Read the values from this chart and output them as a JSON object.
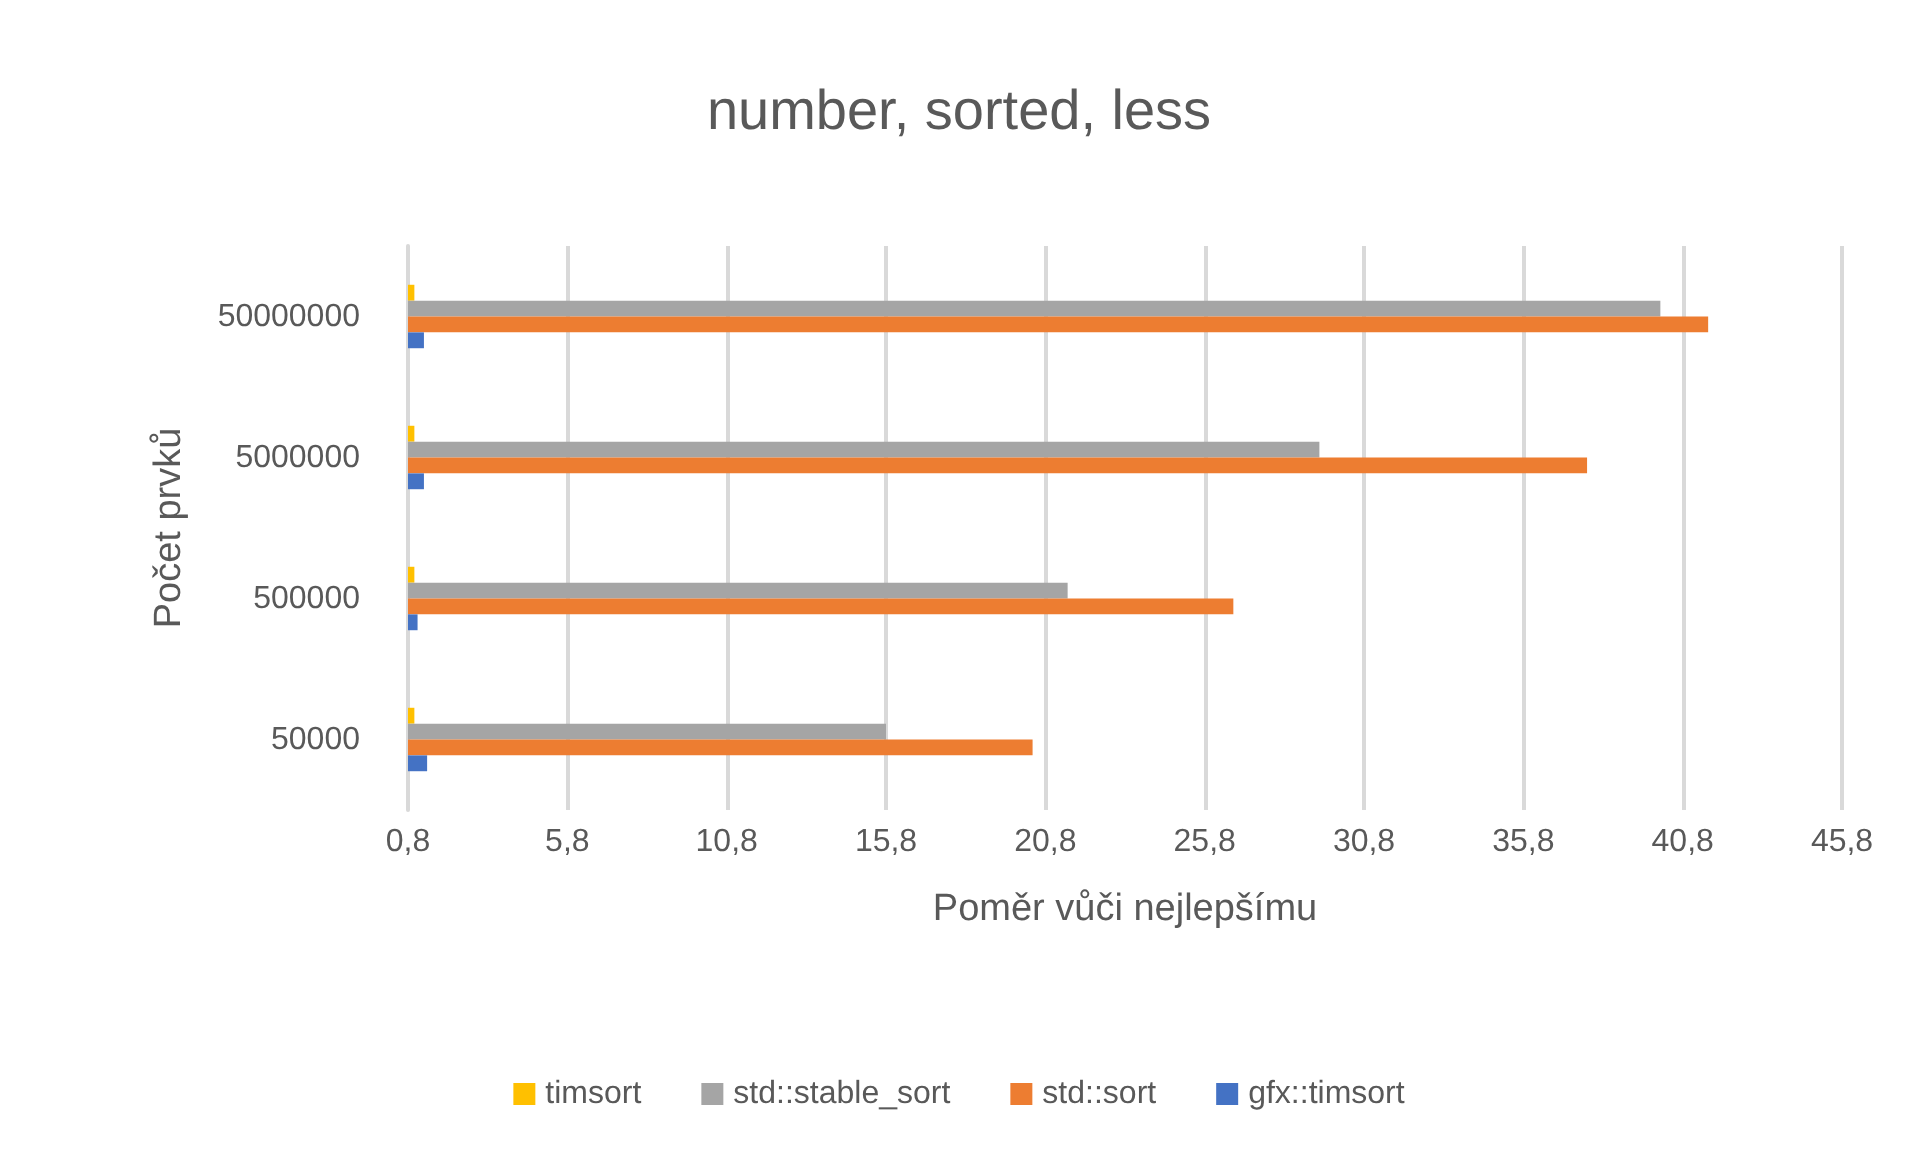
{
  "chart_data": {
    "type": "bar",
    "orientation": "horizontal",
    "title": "number, sorted, less",
    "xlabel": "Poměr vůči nejlepšímu",
    "ylabel": "Počet prvků",
    "categories": [
      "50000000",
      "5000000",
      "500000",
      "50000"
    ],
    "series": [
      {
        "name": "timsort",
        "color": "#ffc000",
        "values": [
          1.0,
          1.0,
          1.0,
          1.0
        ]
      },
      {
        "name": "std::stable_sort",
        "color": "#a5a5a5",
        "values": [
          40.1,
          29.4,
          21.5,
          15.8
        ]
      },
      {
        "name": "std::sort",
        "color": "#ed7d31",
        "values": [
          41.6,
          37.8,
          26.7,
          20.4
        ]
      },
      {
        "name": "gfx::timsort",
        "color": "#4472c4",
        "values": [
          1.3,
          1.3,
          1.1,
          1.4
        ]
      }
    ],
    "xlim": [
      0.8,
      45.8
    ],
    "xticks": [
      {
        "value": 0.8,
        "label": "0,8"
      },
      {
        "value": 5.8,
        "label": "5,8"
      },
      {
        "value": 10.8,
        "label": "10,8"
      },
      {
        "value": 15.8,
        "label": "15,8"
      },
      {
        "value": 20.8,
        "label": "20,8"
      },
      {
        "value": 25.8,
        "label": "25,8"
      },
      {
        "value": 30.8,
        "label": "30,8"
      },
      {
        "value": 35.8,
        "label": "35,8"
      },
      {
        "value": 40.8,
        "label": "40,8"
      },
      {
        "value": 45.8,
        "label": "45,8"
      }
    ],
    "grid": "x",
    "legend": "bottom"
  }
}
